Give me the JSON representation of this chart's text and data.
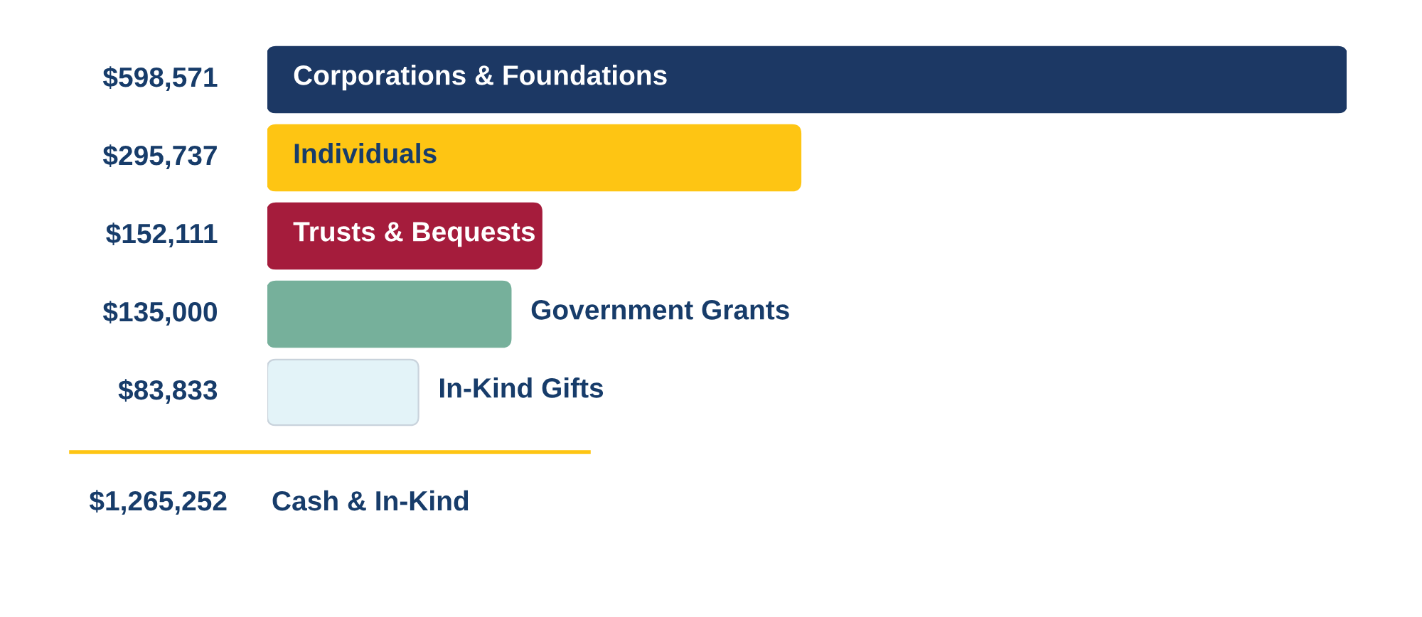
{
  "chart_data": {
    "type": "bar",
    "orientation": "horizontal",
    "tick_labels": "y",
    "categories": [
      "Corporations & Foundations",
      "Individuals",
      "Trusts & Bequests",
      "Government Grants",
      "In-Kind Gifts"
    ],
    "values": [
      598571,
      295737,
      152111,
      135000,
      83833
    ],
    "colors": [
      "#1c3864",
      "#fec513",
      "#a51c3c",
      "#76b09b",
      "#e3f3f8"
    ],
    "value_labels": [
      "$598,571",
      "$295,737",
      "$152,111",
      "$135,000",
      "$83,833"
    ],
    "annotations": [
      "$1,265,252",
      "Cash & In-Kind"
    ]
  }
}
